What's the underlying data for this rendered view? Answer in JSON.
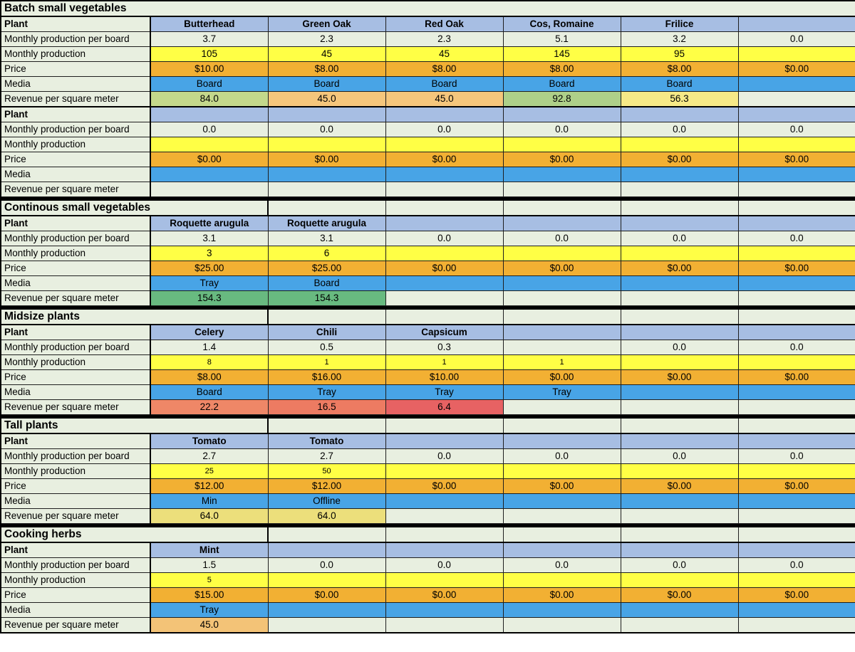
{
  "app": {
    "type": "spreadsheet",
    "content": "hydroponic production planner"
  },
  "row_labels": {
    "plant": "Plant",
    "per_board": "Monthly production per board",
    "production": "Monthly production",
    "price": "Price",
    "media": "Media",
    "revenue": "Revenue per square meter"
  },
  "colors": {
    "default_bg": "#e8efe0",
    "plant_header_bg": "#a7bee3",
    "production_bg": "#ffff45",
    "price_bg": "#f2b033",
    "media_bg": "#48a4e6",
    "divider": "#000000"
  },
  "sections": [
    {
      "title": "Batch small vegetables",
      "title_full_span": true,
      "production_small": false,
      "groups": [
        {
          "plant": [
            "Butterhead",
            "Green Oak",
            "Red Oak",
            "Cos, Romaine",
            "Frilice",
            ""
          ],
          "per_board": [
            "3.7",
            "2.3",
            "2.3",
            "5.1",
            "3.2",
            "0.0"
          ],
          "production": [
            "105",
            "45",
            "45",
            "145",
            "95",
            ""
          ],
          "price": [
            "$10.00",
            "$8.00",
            "$8.00",
            "$8.00",
            "$8.00",
            "$0.00"
          ],
          "media": [
            "Board",
            "Board",
            "Board",
            "Board",
            "Board",
            ""
          ],
          "revenue": [
            "84.0",
            "45.0",
            "45.0",
            "92.8",
            "56.3",
            ""
          ],
          "revenue_colors": [
            "#c4d88b",
            "#f5c67c",
            "#f5c67c",
            "#aed089",
            "#f6e987",
            ""
          ]
        },
        {
          "plant": [
            "",
            "",
            "",
            "",
            "",
            ""
          ],
          "per_board": [
            "0.0",
            "0.0",
            "0.0",
            "0.0",
            "0.0",
            "0.0"
          ],
          "production": [
            "",
            "",
            "",
            "",
            "",
            ""
          ],
          "price": [
            "$0.00",
            "$0.00",
            "$0.00",
            "$0.00",
            "$0.00",
            "$0.00"
          ],
          "media": [
            "",
            "",
            "",
            "",
            "",
            ""
          ],
          "revenue": [
            "",
            "",
            "",
            "",
            "",
            ""
          ],
          "revenue_colors": [
            "",
            "",
            "",
            "",
            "",
            ""
          ]
        }
      ]
    },
    {
      "title": "Continous small vegetables",
      "title_full_span": false,
      "production_small": false,
      "groups": [
        {
          "plant": [
            "Roquette arugula",
            "Roquette arugula",
            "",
            "",
            "",
            ""
          ],
          "per_board": [
            "3.1",
            "3.1",
            "0.0",
            "0.0",
            "0.0",
            "0.0"
          ],
          "production": [
            "3",
            "6",
            "",
            "",
            "",
            ""
          ],
          "price": [
            "$25.00",
            "$25.00",
            "$0.00",
            "$0.00",
            "$0.00",
            "$0.00"
          ],
          "media": [
            "Tray",
            "Board",
            "",
            "",
            "",
            ""
          ],
          "revenue": [
            "154.3",
            "154.3",
            "",
            "",
            "",
            ""
          ],
          "revenue_colors": [
            "#68ba80",
            "#68ba80",
            "",
            "",
            "",
            ""
          ]
        }
      ]
    },
    {
      "title": "Midsize plants",
      "title_full_span": false,
      "production_small": true,
      "groups": [
        {
          "plant": [
            "Celery",
            "Chili",
            "Capsicum",
            "",
            "",
            ""
          ],
          "per_board": [
            "1.4",
            "0.5",
            "0.3",
            "",
            "0.0",
            "0.0"
          ],
          "production": [
            "8",
            "1",
            "1",
            "1",
            "",
            ""
          ],
          "price": [
            "$8.00",
            "$16.00",
            "$10.00",
            "$0.00",
            "$0.00",
            "$0.00"
          ],
          "media": [
            "Board",
            "Tray",
            "Tray",
            "Tray",
            "",
            ""
          ],
          "revenue": [
            "22.2",
            "16.5",
            "6.4",
            "",
            "",
            ""
          ],
          "revenue_colors": [
            "#ef8767",
            "#ed7b62",
            "#e76263",
            "",
            "",
            ""
          ]
        }
      ]
    },
    {
      "title": "Tall plants",
      "title_full_span": false,
      "production_small": true,
      "groups": [
        {
          "plant": [
            "Tomato",
            "Tomato",
            "",
            "",
            "",
            ""
          ],
          "per_board": [
            "2.7",
            "2.7",
            "0.0",
            "0.0",
            "0.0",
            "0.0"
          ],
          "production": [
            "25",
            "50",
            "",
            "",
            "",
            ""
          ],
          "price": [
            "$12.00",
            "$12.00",
            "$0.00",
            "$0.00",
            "$0.00",
            "$0.00"
          ],
          "media": [
            "Min",
            "Offline",
            "",
            "",
            "",
            ""
          ],
          "revenue": [
            "64.0",
            "64.0",
            "",
            "",
            "",
            ""
          ],
          "revenue_colors": [
            "#ecdf7b",
            "#ecdf7b",
            "",
            "",
            "",
            ""
          ]
        }
      ]
    },
    {
      "title": "Cooking herbs",
      "title_full_span": false,
      "production_small": true,
      "groups": [
        {
          "plant": [
            "Mint",
            "",
            "",
            "",
            "",
            ""
          ],
          "per_board": [
            "1.5",
            "0.0",
            "0.0",
            "0.0",
            "0.0",
            "0.0"
          ],
          "production": [
            "5",
            "",
            "",
            "",
            "",
            ""
          ],
          "price": [
            "$15.00",
            "$0.00",
            "$0.00",
            "$0.00",
            "$0.00",
            "$0.00"
          ],
          "media": [
            "Tray",
            "",
            "",
            "",
            "",
            ""
          ],
          "revenue": [
            "45.0",
            "",
            "",
            "",
            "",
            ""
          ],
          "revenue_colors": [
            "#f3c377",
            "",
            "",
            "",
            "",
            ""
          ]
        }
      ]
    }
  ]
}
